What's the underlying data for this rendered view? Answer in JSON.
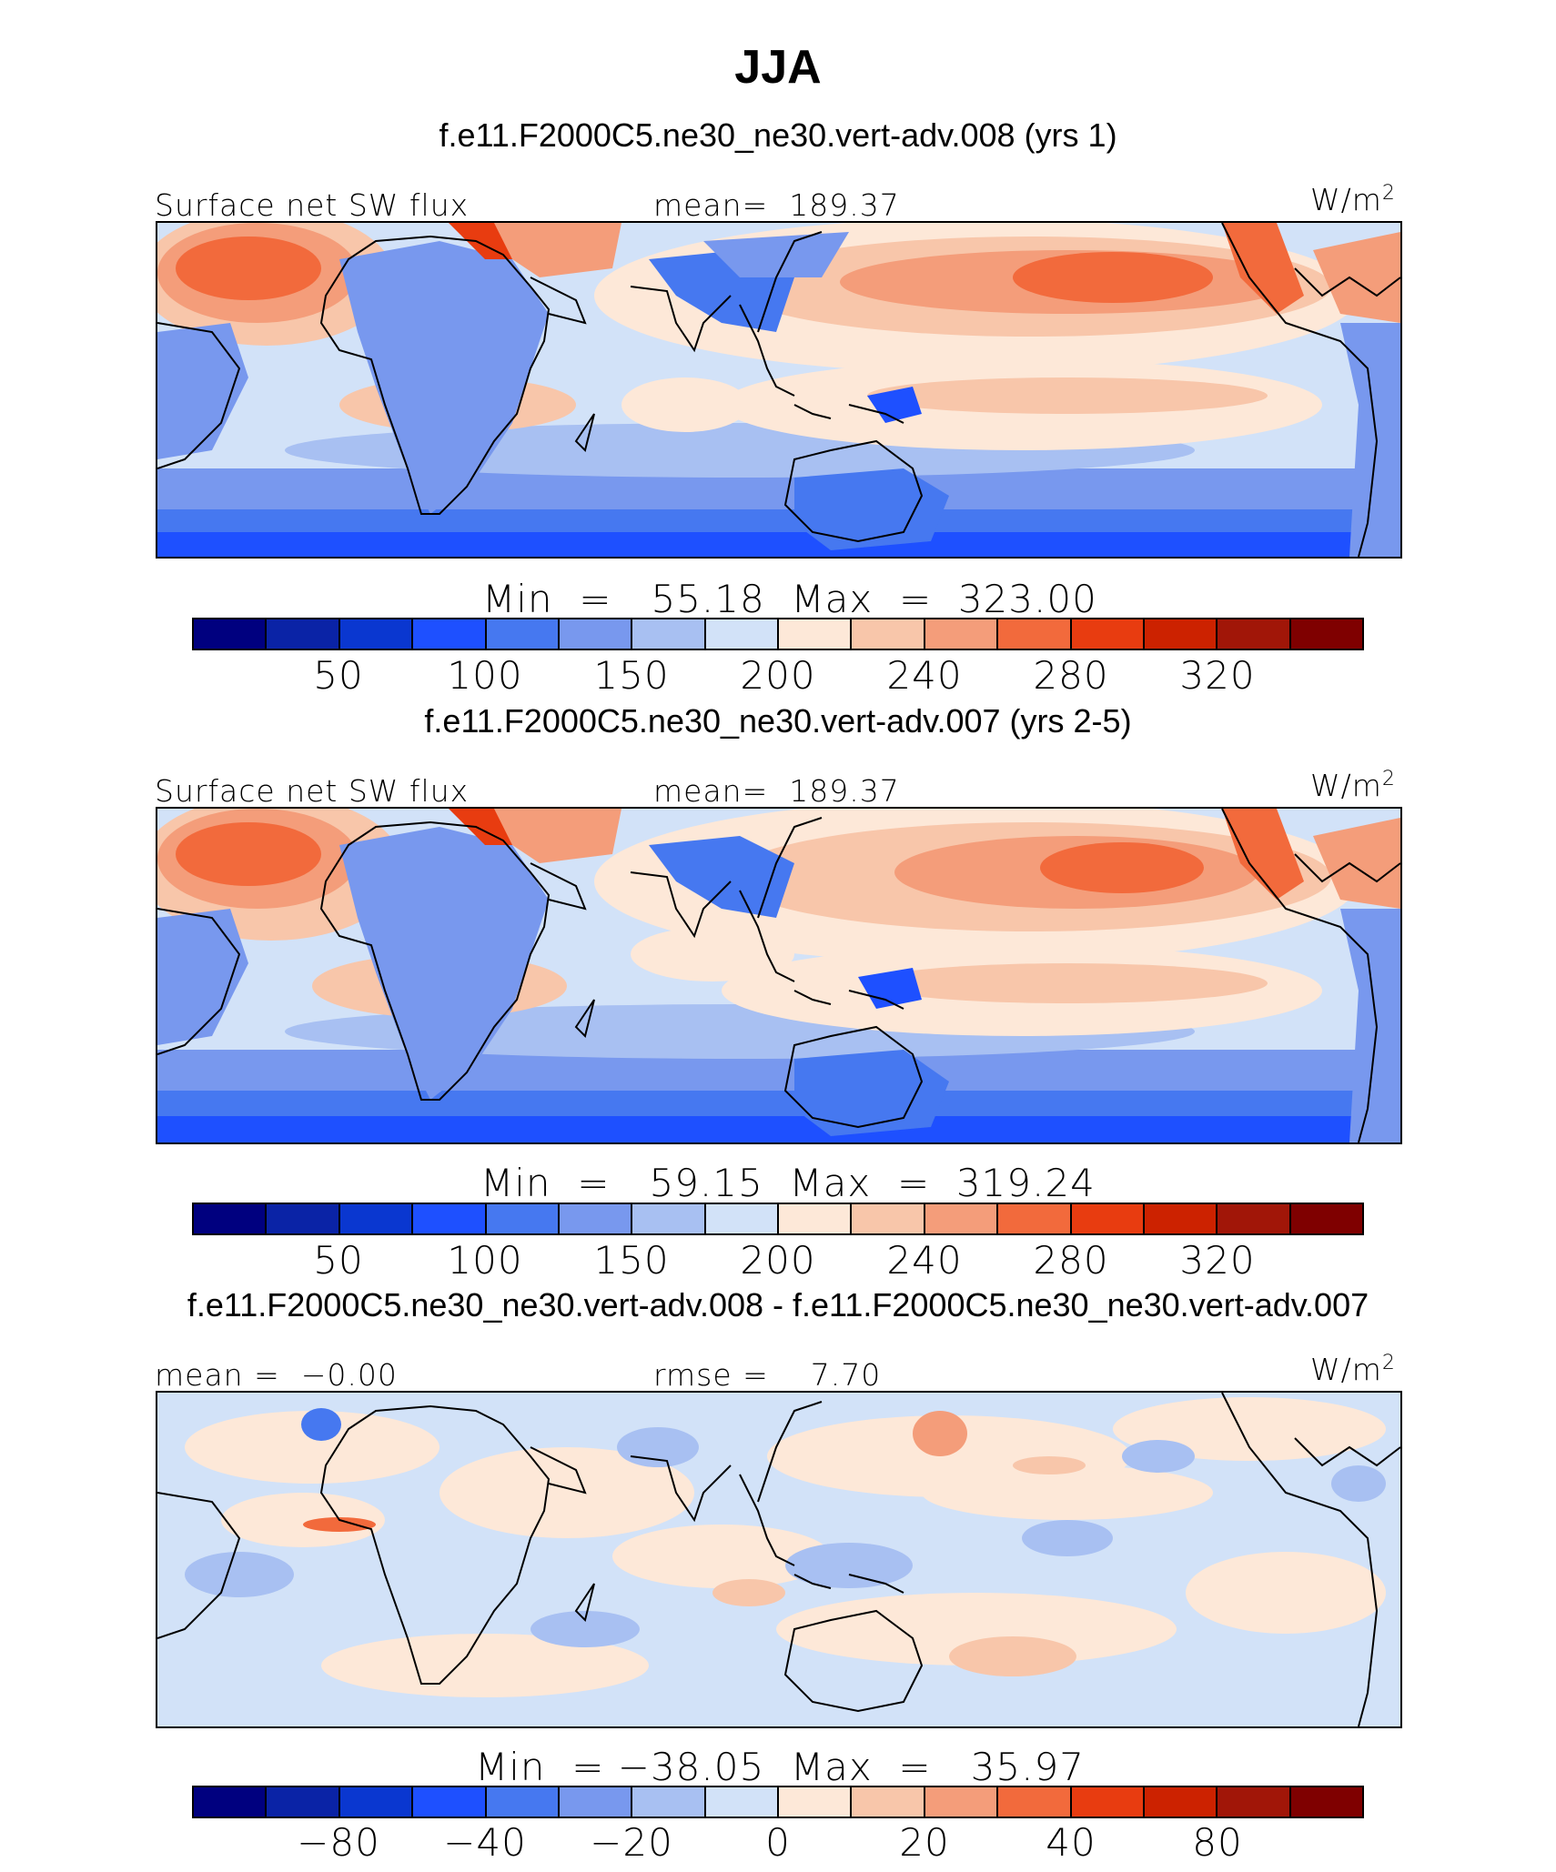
{
  "title": "JJA",
  "colors": [
    "#00007f",
    "#0a23a6",
    "#0a37d0",
    "#1e50ff",
    "#4678f0",
    "#7898ee",
    "#a8c0f2",
    "#d2e2f8",
    "#fde8d8",
    "#f8c6aa",
    "#f49d7a",
    "#f26a3c",
    "#e83c10",
    "#cc2200",
    "#a11608",
    "#7f0000"
  ],
  "panels": [
    {
      "id": "model",
      "case_title": "f.e11.F2000C5.ne30_ne30.vert-adv.008 (yrs 1)",
      "left_label": "Surface net SW flux",
      "center_label": "mean=  189.37",
      "units_base": "W/m",
      "units_exp": "2",
      "minmax": "Min  =   55.18  Max  =  323.00",
      "ticks": [
        "50",
        "100",
        "150",
        "200",
        "240",
        "280",
        "320"
      ]
    },
    {
      "id": "obs",
      "case_title": "f.e11.F2000C5.ne30_ne30.vert-adv.007 (yrs 2-5)",
      "left_label": "Surface net SW flux",
      "center_label": "mean=  189.37",
      "units_base": "W/m",
      "units_exp": "2",
      "minmax": "Min  =   59.15  Max  =  319.24",
      "ticks": [
        "50",
        "100",
        "150",
        "200",
        "240",
        "280",
        "320"
      ]
    },
    {
      "id": "diff",
      "case_title": "f.e11.F2000C5.ne30_ne30.vert-adv.008 - f.e11.F2000C5.ne30_ne30.vert-adv.007",
      "left_label": "mean =  −0.00",
      "center_label": "rmse =    7.70",
      "units_base": "W/m",
      "units_exp": "2",
      "minmax": "Min  = −38.05  Max  =   35.97",
      "ticks": [
        "−80",
        "−40",
        "−20",
        "0",
        "20",
        "40",
        "80"
      ]
    }
  ],
  "chart_data": [
    {
      "type": "heatmap",
      "title": "f.e11.F2000C5.ne30_ne30.vert-adv.008 (yrs 1)",
      "variable": "Surface net SW flux",
      "units": "W/m2",
      "season": "JJA",
      "mean": 189.37,
      "min": 55.18,
      "max": 323.0,
      "colorbar_ticks": [
        50,
        100,
        150,
        200,
        240,
        280,
        320
      ]
    },
    {
      "type": "heatmap",
      "title": "f.e11.F2000C5.ne30_ne30.vert-adv.007 (yrs 2-5)",
      "variable": "Surface net SW flux",
      "units": "W/m2",
      "season": "JJA",
      "mean": 189.37,
      "min": 59.15,
      "max": 319.24,
      "colorbar_ticks": [
        50,
        100,
        150,
        200,
        240,
        280,
        320
      ]
    },
    {
      "type": "heatmap",
      "title": "f.e11.F2000C5.ne30_ne30.vert-adv.008 - f.e11.F2000C5.ne30_ne30.vert-adv.007",
      "units": "W/m2",
      "season": "JJA",
      "mean": -0.0,
      "rmse": 7.7,
      "min": -38.05,
      "max": 35.97,
      "colorbar_ticks": [
        -80,
        -40,
        -20,
        0,
        20,
        40,
        80
      ]
    }
  ]
}
